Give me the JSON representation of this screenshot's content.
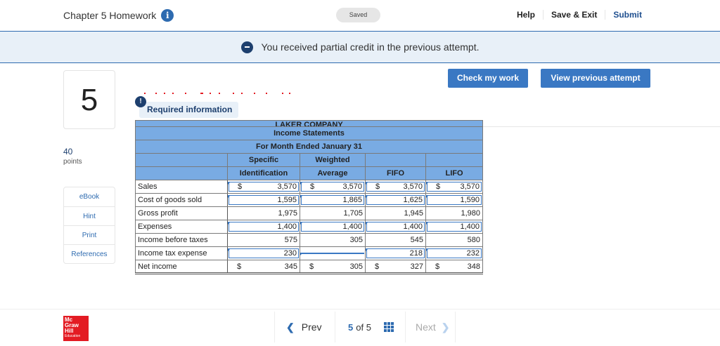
{
  "header": {
    "title": "Chapter 5 Homework",
    "save_status": "Saved",
    "links": {
      "help": "Help",
      "save_exit": "Save & Exit",
      "submit": "Submit"
    }
  },
  "banner": {
    "message": "You received partial credit in the previous attempt."
  },
  "actions": {
    "check_work": "Check my work",
    "view_previous": "View previous attempt"
  },
  "question": {
    "number": "5",
    "points_value": "40",
    "points_label": "points",
    "required_info_label": "Required information"
  },
  "tools": [
    "eBook",
    "Hint",
    "Print",
    "References"
  ],
  "statement": {
    "company": "LAKER COMPANY",
    "title": "Income Statements",
    "period": "For Month Ended January 31",
    "col_headers_top": [
      "",
      "Specific",
      "Weighted",
      "",
      ""
    ],
    "col_headers": [
      "",
      "Identification",
      "Average",
      "FIFO",
      "LIFO"
    ],
    "currency_symbol": "$",
    "rows": [
      {
        "label": "Sales",
        "dollar": true,
        "values": [
          "3,570",
          "3,570",
          "3,570",
          "3,570"
        ],
        "input": true
      },
      {
        "label": "Cost of goods sold",
        "dollar": false,
        "values": [
          "1,595",
          "1,865",
          "1,625",
          "1,590"
        ],
        "input": true
      },
      {
        "label": "Gross profit",
        "dollar": false,
        "values": [
          "1,975",
          "1,705",
          "1,945",
          "1,980"
        ],
        "input": false
      },
      {
        "label": "Expenses",
        "dollar": false,
        "values": [
          "1,400",
          "1,400",
          "1,400",
          "1,400"
        ],
        "input": true
      },
      {
        "label": "Income before taxes",
        "dollar": false,
        "values": [
          "575",
          "305",
          "545",
          "580"
        ],
        "input": false
      },
      {
        "label": "Income tax expense",
        "dollar": false,
        "values": [
          "230",
          "",
          "218",
          "232"
        ],
        "input": true
      },
      {
        "label": "Net income",
        "dollar": true,
        "values": [
          "345",
          "305",
          "327",
          "348"
        ],
        "input": false
      }
    ]
  },
  "footer": {
    "logo_lines": [
      "Mc",
      "Graw",
      "Hill",
      "Education"
    ],
    "prev_label": "Prev",
    "current_page": "5",
    "of_label": "of",
    "total_pages": "5",
    "next_label": "Next"
  },
  "colors": {
    "accent": "#3a78c3",
    "header_blue": "#79abe3",
    "brand_red": "#e31b23",
    "navy": "#1d3f6e"
  }
}
